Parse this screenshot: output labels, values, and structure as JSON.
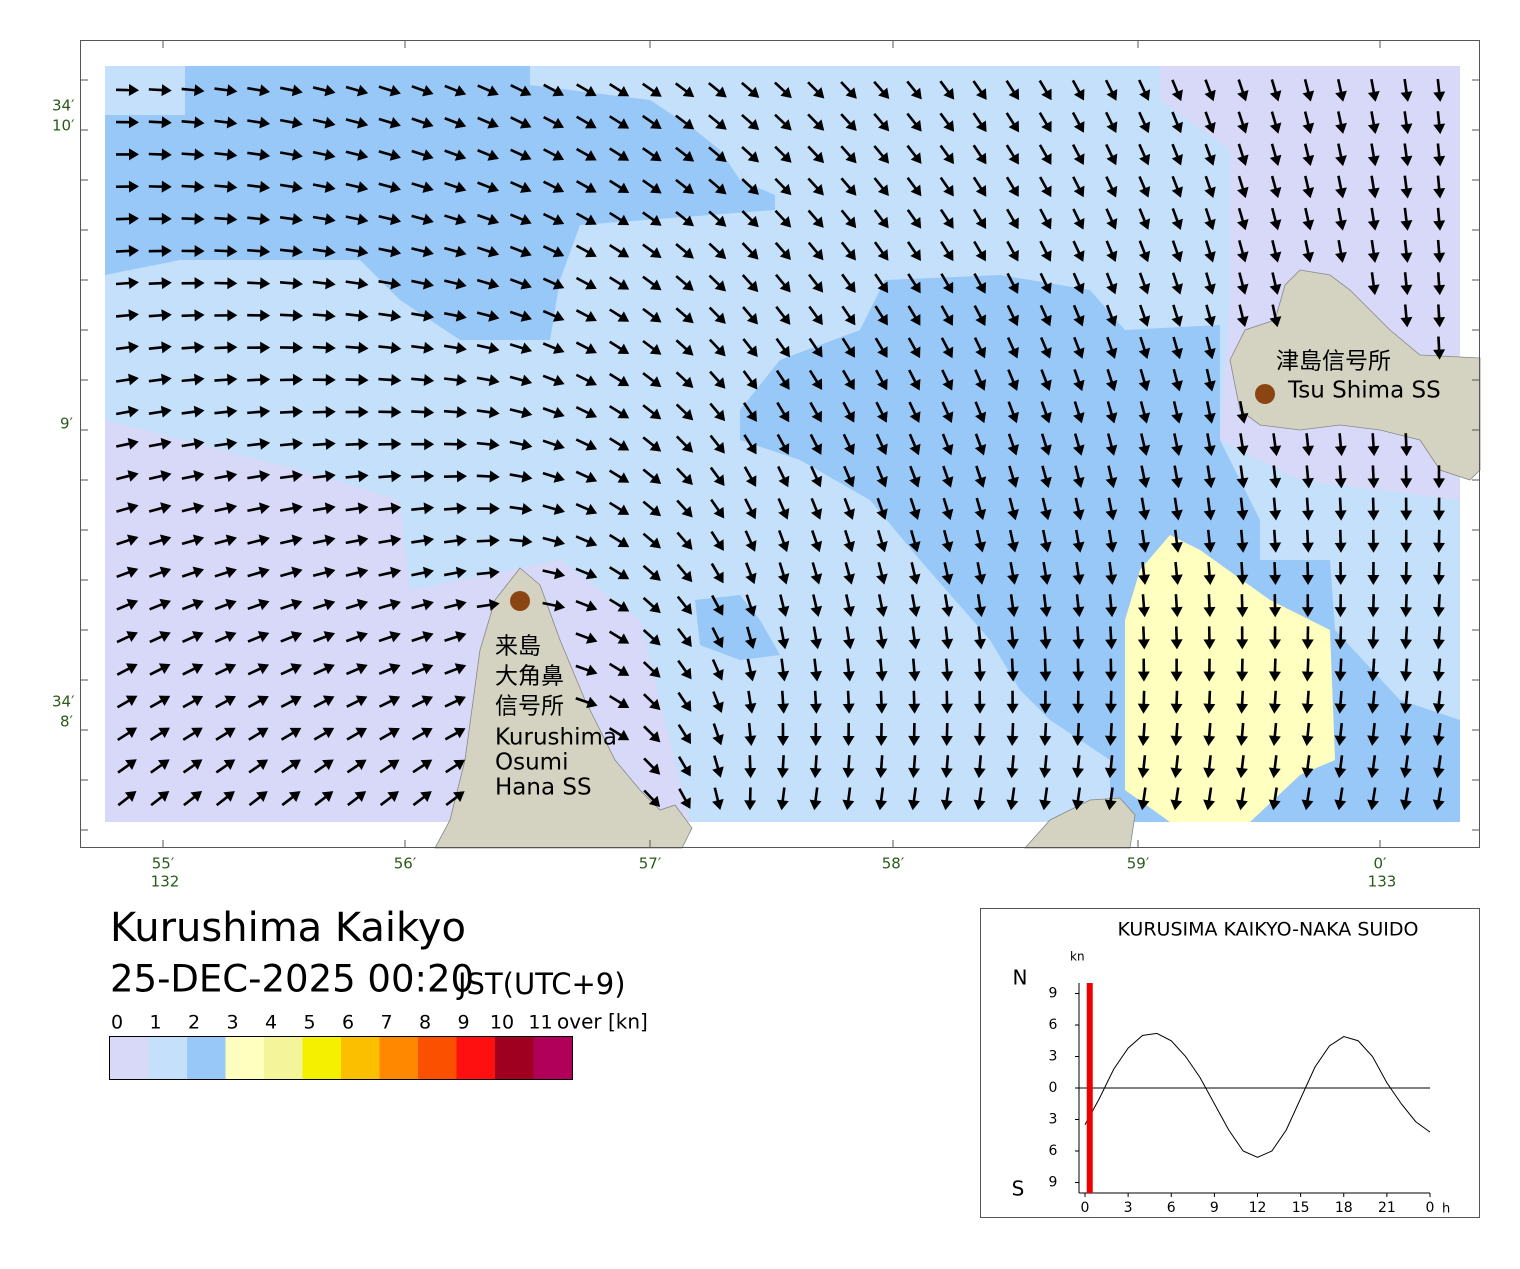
{
  "map": {
    "lat_labels": [
      {
        "deg": "34′",
        "min": "10′"
      },
      {
        "min": "9′"
      },
      {
        "deg": "34′",
        "min": "8′"
      }
    ],
    "lon_labels": [
      {
        "min": "55′",
        "deg": "132"
      },
      {
        "min": "56′"
      },
      {
        "min": "57′"
      },
      {
        "min": "58′"
      },
      {
        "min": "59′"
      },
      {
        "min": "0′",
        "deg": "133"
      }
    ],
    "stations": [
      {
        "name_ja": [
          "来島",
          "大角鼻",
          "信号所"
        ],
        "name_en": [
          "Kurushima",
          "Osumi",
          "Hana SS"
        ]
      },
      {
        "name_ja": [
          "津島信号所"
        ],
        "name_en": [
          "Tsu Shima SS"
        ]
      }
    ]
  },
  "title": "Kurushima Kaikyo",
  "datetime": "25-DEC-2025 00:20",
  "timezone": "JST(UTC+9)",
  "legend": {
    "labels": [
      "0",
      "1",
      "2",
      "3",
      "4",
      "5",
      "6",
      "7",
      "8",
      "9",
      "10",
      "11"
    ],
    "unit": "over [kn]",
    "colors": [
      "#d8d8f8",
      "#c4e0fa",
      "#98c8f8",
      "#ffffc0",
      "#f4f49a",
      "#f5f000",
      "#fbbf00",
      "#ff8800",
      "#fa5000",
      "#ff1010",
      "#a00020",
      "#b0005a"
    ]
  },
  "chart_data": {
    "type": "line",
    "title": "KURUSIMA KAIKYO-NAKA SUIDO",
    "y_unit": "kn",
    "x_unit": "h",
    "north_label": "N",
    "south_label": "S",
    "x": [
      0,
      1,
      2,
      3,
      4,
      5,
      6,
      7,
      8,
      9,
      10,
      11,
      12,
      13,
      14,
      15,
      16,
      17,
      18,
      19,
      20,
      21,
      22,
      23,
      24
    ],
    "values": [
      -3.5,
      -1,
      1.8,
      3.8,
      5,
      5.2,
      4.5,
      3,
      1,
      -1.5,
      -4,
      -6,
      -6.6,
      -6,
      -4,
      -1,
      2,
      4,
      4.9,
      4.5,
      3,
      0.5,
      -1.5,
      -3.2,
      -4.2
    ],
    "color": "#000000",
    "current_time": 0.33,
    "marker_color": "#ee0000",
    "xlim": [
      0,
      24
    ],
    "ylim": [
      -10,
      10
    ],
    "xticks": [
      0,
      3,
      6,
      9,
      12,
      15,
      18,
      21,
      {
        "value": 24,
        "label": "0"
      }
    ],
    "yticks": [
      9,
      6,
      3,
      0,
      {
        "value": -3,
        "label": "3"
      },
      {
        "value": -6,
        "label": "6"
      },
      {
        "value": -9,
        "label": "9"
      }
    ],
    "zero_line": true
  }
}
